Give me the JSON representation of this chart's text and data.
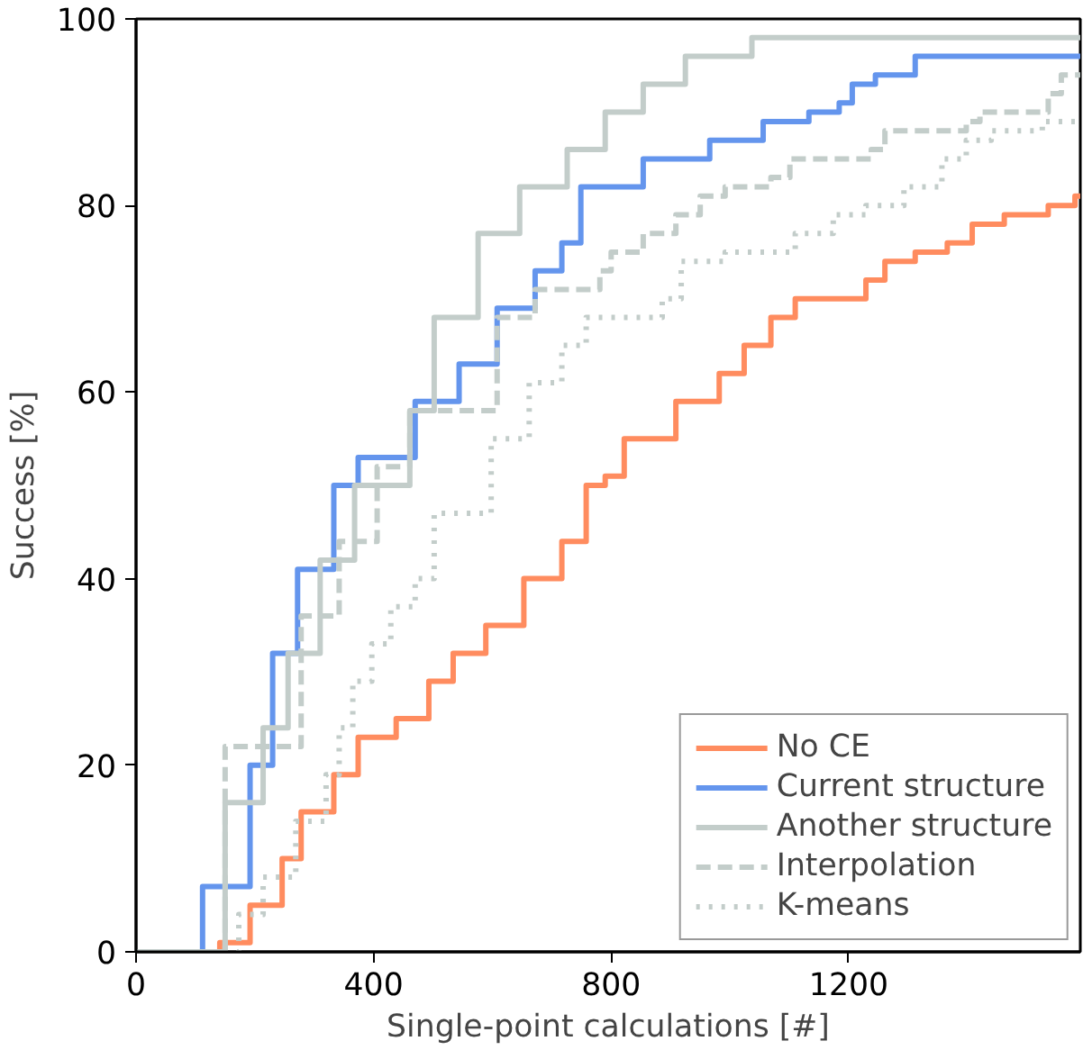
{
  "chart_data": {
    "type": "step",
    "xlabel": "Single-point calculations [#]",
    "ylabel": "Success [%]",
    "xlim": [
      0,
      1590
    ],
    "ylim": [
      0,
      100
    ],
    "xticks": [
      0,
      400,
      800,
      1200
    ],
    "yticks": [
      0,
      20,
      40,
      60,
      80,
      100
    ],
    "grid": false,
    "legend": "bottom right",
    "series": [
      {
        "name": "No CE",
        "color": "#ff8c5f",
        "line_style": "solid",
        "x": [
          0,
          54,
          141,
          192,
          246,
          278,
          333,
          374,
          438,
          493,
          534,
          589,
          653,
          717,
          758,
          790,
          822,
          909,
          982,
          1024,
          1069,
          1110,
          1229,
          1261,
          1312,
          1366,
          1408,
          1462,
          1536,
          1581,
          1590
        ],
        "values": [
          0,
          0,
          1,
          5,
          10,
          15,
          19,
          23,
          25,
          29,
          32,
          35,
          40,
          44,
          50,
          51,
          55,
          59,
          62,
          65,
          68,
          70,
          72,
          74,
          75,
          76,
          78,
          79,
          80,
          81,
          81
        ]
      },
      {
        "name": "Current structure",
        "color": "#6495ed",
        "line_style": "solid",
        "x": [
          0,
          80,
          112,
          192,
          230,
          272,
          333,
          374,
          470,
          544,
          608,
          672,
          717,
          749,
          800,
          854,
          966,
          1056,
          1133,
          1184,
          1206,
          1245,
          1312,
          1590
        ],
        "values": [
          0,
          0,
          7,
          20,
          32,
          41,
          50,
          53,
          59,
          63,
          69,
          73,
          76,
          82,
          82,
          85,
          87,
          89,
          90,
          91,
          93,
          94,
          96,
          96
        ]
      },
      {
        "name": "Another structure",
        "color": "#c3cdca",
        "line_style": "solid",
        "x": [
          0,
          86,
          150,
          214,
          256,
          310,
          368,
          461,
          502,
          576,
          646,
          726,
          790,
          854,
          925,
          1037,
          1590
        ],
        "values": [
          0,
          0,
          16,
          24,
          32,
          42,
          50,
          58,
          68,
          77,
          82,
          86,
          90,
          93,
          96,
          98,
          98
        ]
      },
      {
        "name": "Interpolation",
        "color": "#c3cdca",
        "line_style": "dashed",
        "x": [
          0,
          70,
          150,
          278,
          342,
          406,
          461,
          608,
          672,
          781,
          800,
          854,
          909,
          950,
          992,
          1069,
          1101,
          1238,
          1261,
          1398,
          1421,
          1536,
          1558,
          1590
        ],
        "values": [
          0,
          0,
          22,
          36,
          44,
          52,
          58,
          68,
          71,
          73,
          75,
          77,
          79,
          81,
          82,
          83,
          85,
          86,
          88,
          89,
          90,
          92,
          94,
          94
        ]
      },
      {
        "name": "K-means",
        "color": "#c3cdca",
        "line_style": "dotted",
        "x": [
          0,
          140,
          173,
          214,
          269,
          320,
          342,
          365,
          397,
          429,
          470,
          502,
          598,
          662,
          717,
          758,
          886,
          918,
          992,
          1110,
          1174,
          1229,
          1293,
          1357,
          1398,
          1440,
          1526,
          1590
        ],
        "values": [
          0,
          0,
          4,
          8,
          14,
          19,
          24,
          29,
          33,
          37,
          40,
          47,
          55,
          61,
          65,
          68,
          70,
          74,
          75,
          77,
          79,
          80,
          82,
          85,
          87,
          88,
          89,
          89
        ]
      }
    ]
  }
}
